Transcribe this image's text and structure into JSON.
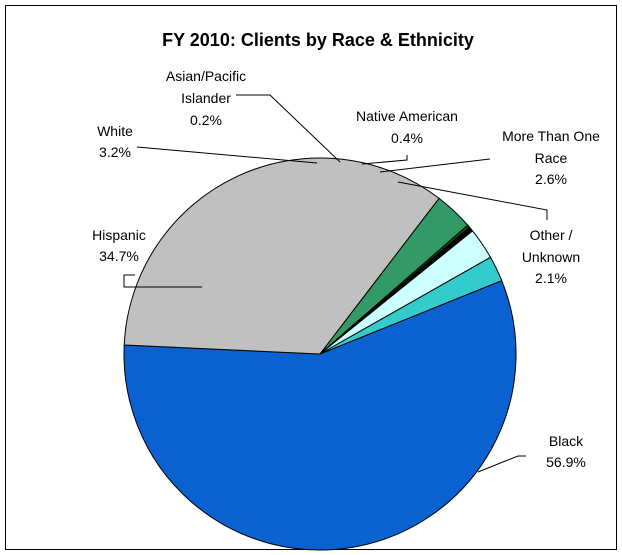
{
  "chart_data": {
    "type": "pie",
    "title": "FY 2010: Clients by Race & Ethnicity",
    "start_angle_deg": 68,
    "direction": "clockwise",
    "slices": [
      {
        "name": "Black",
        "value": 56.9,
        "value_label": "56.9%",
        "color": "#0a62d0",
        "label_lines": [
          "Black",
          "56.9%"
        ]
      },
      {
        "name": "Hispanic",
        "value": 34.7,
        "value_label": "34.7%",
        "color": "#c0c0c0",
        "label_lines": [
          "Hispanic",
          "34.7%"
        ]
      },
      {
        "name": "White",
        "value": 3.2,
        "value_label": "3.2%",
        "color": "#339966",
        "label_lines": [
          "White",
          "3.2%"
        ]
      },
      {
        "name": "Asian/Pacific Islander",
        "value": 0.2,
        "value_label": "0.2%",
        "color": "#006600",
        "label_lines": [
          "Asian/Pacific",
          "Islander",
          "0.2%"
        ]
      },
      {
        "name": "Native American",
        "value": 0.4,
        "value_label": "0.4%",
        "color": "#000000",
        "label_lines": [
          "Native American",
          "0.4%"
        ]
      },
      {
        "name": "More Than One Race",
        "value": 2.6,
        "value_label": "2.6%",
        "color": "#ccffff",
        "label_lines": [
          "More Than One",
          "Race",
          "2.6%"
        ]
      },
      {
        "name": "Other / Unknown",
        "value": 2.1,
        "value_label": "2.1%",
        "color": "#33cccc",
        "label_lines": [
          "Other /",
          "Unknown",
          "2.1%"
        ]
      }
    ],
    "legend": "none"
  }
}
